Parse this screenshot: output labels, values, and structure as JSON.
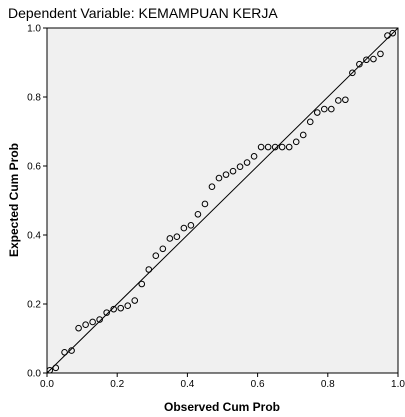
{
  "chart_data": {
    "type": "scatter",
    "title": "Dependent Variable: KEMAMPUAN KERJA",
    "xlabel": "Observed Cum Prob",
    "ylabel": "Expected Cum Prob",
    "xlim": [
      0,
      1
    ],
    "ylim": [
      0,
      1
    ],
    "xticks": [
      "0.0",
      "0.2",
      "0.4",
      "0.6",
      "0.8",
      "1.0"
    ],
    "yticks": [
      "0.0",
      "0.2",
      "0.4",
      "0.6",
      "0.8",
      "1.0"
    ],
    "grid": false,
    "reference_line": [
      [
        0,
        0
      ],
      [
        1,
        1
      ]
    ],
    "colors": {
      "plot_background": "#f0f0f0",
      "points": "#000000",
      "line": "#000000"
    },
    "points": [
      [
        0.008,
        0.008
      ],
      [
        0.025,
        0.015
      ],
      [
        0.05,
        0.06
      ],
      [
        0.07,
        0.065
      ],
      [
        0.09,
        0.13
      ],
      [
        0.11,
        0.14
      ],
      [
        0.13,
        0.148
      ],
      [
        0.15,
        0.155
      ],
      [
        0.17,
        0.175
      ],
      [
        0.19,
        0.185
      ],
      [
        0.21,
        0.188
      ],
      [
        0.23,
        0.195
      ],
      [
        0.25,
        0.21
      ],
      [
        0.27,
        0.258
      ],
      [
        0.29,
        0.3
      ],
      [
        0.31,
        0.34
      ],
      [
        0.33,
        0.36
      ],
      [
        0.35,
        0.39
      ],
      [
        0.37,
        0.395
      ],
      [
        0.39,
        0.42
      ],
      [
        0.41,
        0.428
      ],
      [
        0.43,
        0.46
      ],
      [
        0.45,
        0.49
      ],
      [
        0.47,
        0.54
      ],
      [
        0.49,
        0.565
      ],
      [
        0.51,
        0.575
      ],
      [
        0.53,
        0.585
      ],
      [
        0.55,
        0.598
      ],
      [
        0.57,
        0.61
      ],
      [
        0.59,
        0.628
      ],
      [
        0.61,
        0.655
      ],
      [
        0.63,
        0.655
      ],
      [
        0.65,
        0.655
      ],
      [
        0.67,
        0.655
      ],
      [
        0.69,
        0.655
      ],
      [
        0.71,
        0.67
      ],
      [
        0.73,
        0.69
      ],
      [
        0.75,
        0.728
      ],
      [
        0.77,
        0.755
      ],
      [
        0.79,
        0.765
      ],
      [
        0.81,
        0.765
      ],
      [
        0.83,
        0.79
      ],
      [
        0.85,
        0.792
      ],
      [
        0.87,
        0.87
      ],
      [
        0.89,
        0.895
      ],
      [
        0.91,
        0.908
      ],
      [
        0.93,
        0.91
      ],
      [
        0.95,
        0.925
      ],
      [
        0.97,
        0.978
      ],
      [
        0.985,
        0.985
      ]
    ]
  }
}
